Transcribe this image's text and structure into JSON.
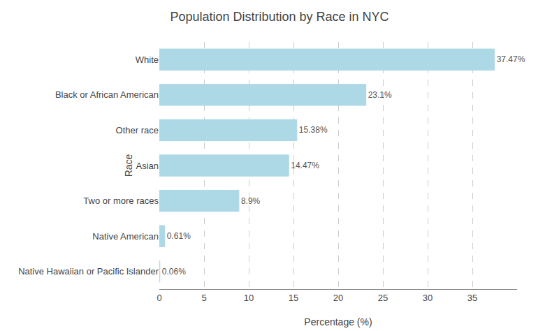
{
  "chart_data": {
    "type": "bar",
    "orientation": "horizontal",
    "title": "Population Distribution by Race in NYC",
    "xlabel": "Percentage (%)",
    "ylabel": "Race",
    "categories": [
      "White",
      "Black or African American",
      "Other race",
      "Asian",
      "Two or more races",
      "Native American",
      "Native Hawaiian or Pacific Islander"
    ],
    "values": [
      37.47,
      23.1,
      15.38,
      14.47,
      8.9,
      0.61,
      0.06
    ],
    "value_labels": [
      "37.47%",
      "23.1%",
      "15.38%",
      "14.47%",
      "8.9%",
      "0.61%",
      "0.06%"
    ],
    "data_labels": true,
    "color": "#ADD8E6",
    "xlim": [
      0,
      40
    ],
    "xticks": [
      0,
      5,
      10,
      15,
      20,
      25,
      30,
      35
    ],
    "grid": true
  }
}
